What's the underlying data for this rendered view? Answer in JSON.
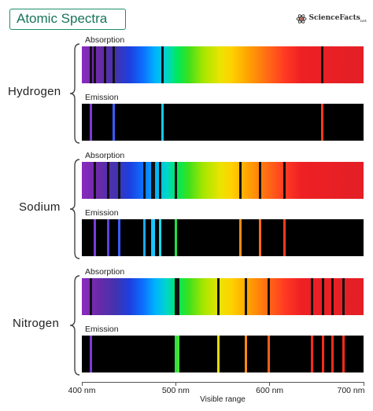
{
  "title": "Atomic Spectra",
  "logo": {
    "name": "ScienceFacts",
    "suffix": "net"
  },
  "axis": {
    "min_nm": 400,
    "max_nm": 700,
    "ticks": [
      {
        "value": 400,
        "label": "400 nm"
      },
      {
        "value": 500,
        "label": "500 nm"
      },
      {
        "value": 600,
        "label": "600 nm"
      },
      {
        "value": 700,
        "label": "700 nm"
      }
    ],
    "title": "Visible range"
  },
  "labels": {
    "absorption": "Absorption",
    "emission": "Emission"
  },
  "elements": [
    {
      "id": "hydrogen",
      "name": "Hydrogen",
      "absorption_lines": [
        410,
        414,
        425,
        434,
        486,
        656
      ],
      "emission_lines": [
        {
          "nm": 410,
          "color": "#7a3cd8"
        },
        {
          "nm": 434,
          "color": "#3a5aff"
        },
        {
          "nm": 486,
          "color": "#18c8e8"
        },
        {
          "nm": 656,
          "color": "#ff3a1a"
        }
      ]
    },
    {
      "id": "sodium",
      "name": "Sodium",
      "absorption_lines": [
        414,
        428,
        440,
        467,
        475,
        477,
        483,
        500,
        569,
        590,
        616
      ],
      "emission_lines": [
        {
          "nm": 414,
          "color": "#7a3cd8"
        },
        {
          "nm": 428,
          "color": "#5a44e0"
        },
        {
          "nm": 440,
          "color": "#3a5aff"
        },
        {
          "nm": 467,
          "color": "#18a8ff"
        },
        {
          "nm": 475,
          "color": "#18c0ff"
        },
        {
          "nm": 477,
          "color": "#18c8ff"
        },
        {
          "nm": 483,
          "color": "#18d8e8"
        },
        {
          "nm": 500,
          "color": "#20e040"
        },
        {
          "nm": 569,
          "color": "#ff8a10"
        },
        {
          "nm": 590,
          "color": "#ff6a18"
        },
        {
          "nm": 616,
          "color": "#ff3a1a"
        }
      ]
    },
    {
      "id": "nitrogen",
      "name": "Nitrogen",
      "absorption_lines": [
        410,
        500,
        503,
        545,
        575,
        599,
        645,
        657,
        667,
        679
      ],
      "emission_lines": [
        {
          "nm": 410,
          "color": "#7a3cd8"
        },
        {
          "nm": 500,
          "color": "#30e040"
        },
        {
          "nm": 503,
          "color": "#50e030"
        },
        {
          "nm": 545,
          "color": "#e0e000"
        },
        {
          "nm": 575,
          "color": "#ff8a10"
        },
        {
          "nm": 599,
          "color": "#ff5a18"
        },
        {
          "nm": 645,
          "color": "#ff2a1a"
        },
        {
          "nm": 657,
          "color": "#ff2a1a"
        },
        {
          "nm": 667,
          "color": "#ff2a1a"
        },
        {
          "nm": 679,
          "color": "#ff2a1a"
        }
      ]
    }
  ]
}
